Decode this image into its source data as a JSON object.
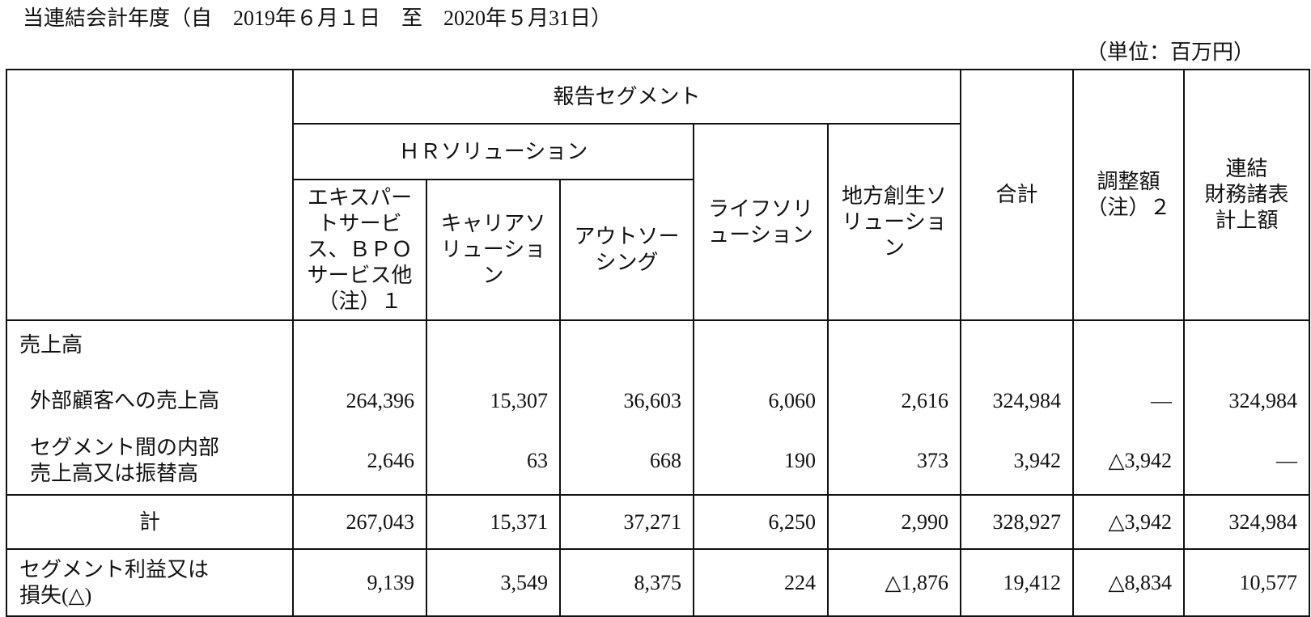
{
  "title": "当連結会計年度（自　2019年６月１日　至　2020年５月31日）",
  "unit": "（単位：百万円）",
  "table": {
    "segment_group": "報告セグメント",
    "hr_group": "ＨＲソリューション",
    "columns": [
      [
        "エキスパー",
        "トサービ",
        "ス、ＢＰＯ",
        "サービス他",
        "（注）１"
      ],
      [
        "キャリアソ",
        "リューショ",
        "ン"
      ],
      [
        "アウトソー",
        "シング"
      ],
      [
        "ライフソリ",
        "ューション"
      ],
      [
        "地方創生ソ",
        "リューショ",
        "ン"
      ],
      [
        "合計"
      ],
      [
        "調整額",
        "（注）２"
      ],
      [
        "連結",
        "財務諸表",
        "計上額"
      ]
    ],
    "rows": [
      {
        "label": [
          "売上高"
        ]
      },
      {
        "label": [
          "外部顧客への売上高"
        ],
        "values": [
          "264,396",
          "15,307",
          "36,603",
          "6,060",
          "2,616",
          "324,984",
          "―",
          "324,984"
        ]
      },
      {
        "label": [
          "セグメント間の内部",
          "売上高又は振替高"
        ],
        "values": [
          "2,646",
          "63",
          "668",
          "190",
          "373",
          "3,942",
          "△3,942",
          "―"
        ]
      },
      {
        "label": [
          "計"
        ],
        "values": [
          "267,043",
          "15,371",
          "37,271",
          "6,250",
          "2,990",
          "328,927",
          "△3,942",
          "324,984"
        ]
      },
      {
        "label": [
          "セグメント利益又は",
          "損失(△)"
        ],
        "values": [
          "9,139",
          "3,549",
          "8,375",
          "224",
          "△1,876",
          "19,412",
          "△8,834",
          "10,577"
        ]
      }
    ]
  }
}
